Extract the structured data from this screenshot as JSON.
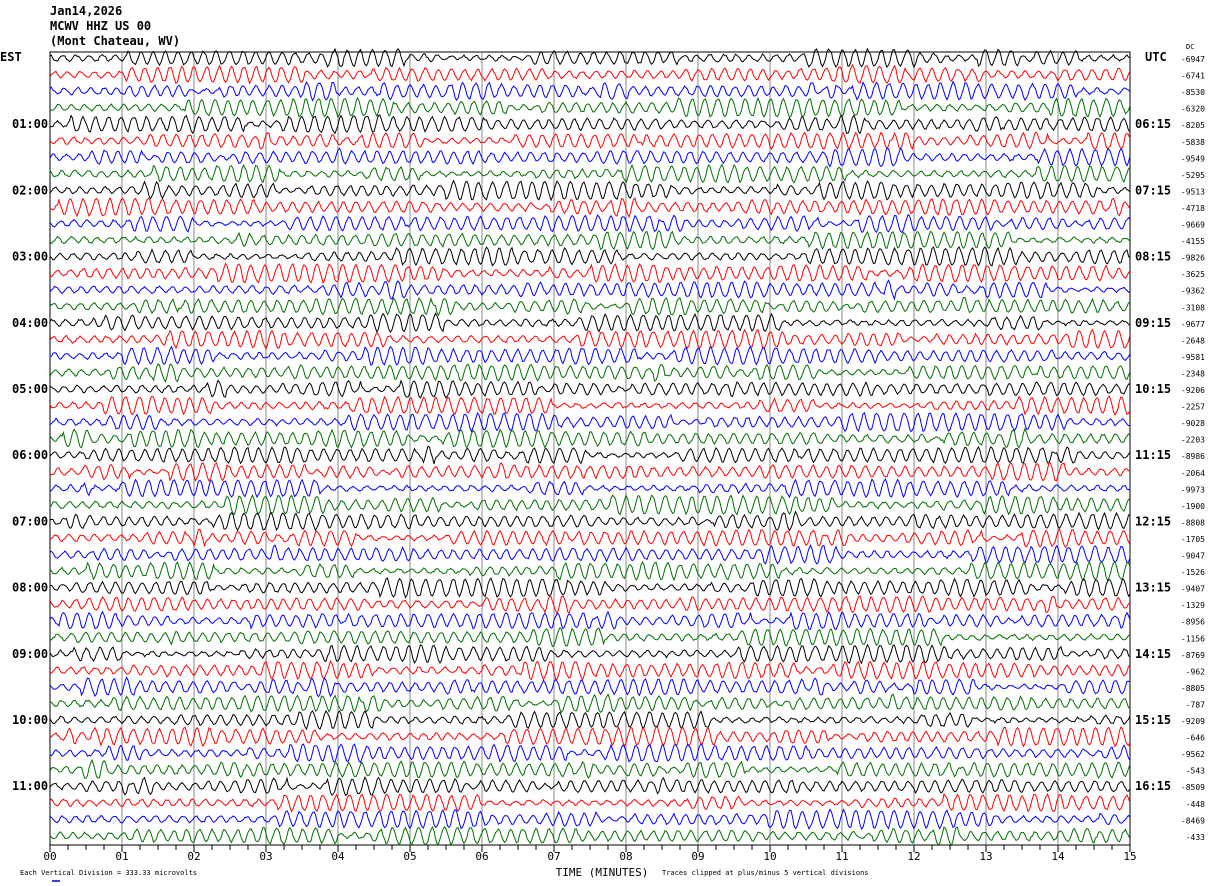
{
  "header": {
    "date": "Jan14,2026",
    "station": "MCWV HHZ US 00",
    "location": "(Mont Chateau, WV)"
  },
  "chart_data": {
    "type": "line",
    "subtype": "helicorder",
    "left_axis_label": "EST",
    "right_axis_label": "UTC",
    "dc_label": "DC",
    "xlabel": "TIME (MINUTES)",
    "xlim": [
      0,
      15
    ],
    "x_tick_labels": [
      "00",
      "01",
      "02",
      "03",
      "04",
      "05",
      "06",
      "07",
      "08",
      "09",
      "10",
      "11",
      "12",
      "13",
      "14",
      "15"
    ],
    "rows_per_hour": 4,
    "row_count": 48,
    "est_hour_labels": [
      "01:00",
      "02:00",
      "03:00",
      "04:00",
      "05:00",
      "06:00",
      "07:00",
      "08:00",
      "09:00",
      "10:00",
      "11:00"
    ],
    "utc_hour_labels": [
      "06:15",
      "07:15",
      "08:15",
      "09:15",
      "10:15",
      "11:15",
      "12:15",
      "13:15",
      "14:15",
      "15:15",
      "16:15"
    ],
    "dc_offsets": [
      "-6947",
      "-6741",
      "-8530",
      "-6320",
      "-8205",
      "-5838",
      "-9549",
      "-5295",
      "-9513",
      "-4718",
      "-9669",
      "-4155",
      "-9826",
      "-3625",
      "-9362",
      "-3108",
      "-9677",
      "-2648",
      "-9581",
      "-2348",
      "-9206",
      "-2257",
      "-9028",
      "-2203",
      "-8986",
      "-2064",
      "-9973",
      "-1900",
      "-8808",
      "-1705",
      "-9047",
      "-1526",
      "-9407",
      "-1329",
      "-8956",
      "-1156",
      "-8769",
      "-962",
      "-8805",
      "-787",
      "-9209",
      "-646",
      "-9562",
      "-543",
      "-8509",
      "-448",
      "-8469",
      "-433"
    ],
    "trace_colors": [
      "#000000",
      "#ff0000",
      "#0000ff",
      "#007000"
    ],
    "grid": true,
    "scale_note": "Each Vertical Division =  333.33 microvolts",
    "clip_note": "Traces clipped at plus/minus 5 vertical divisions"
  }
}
